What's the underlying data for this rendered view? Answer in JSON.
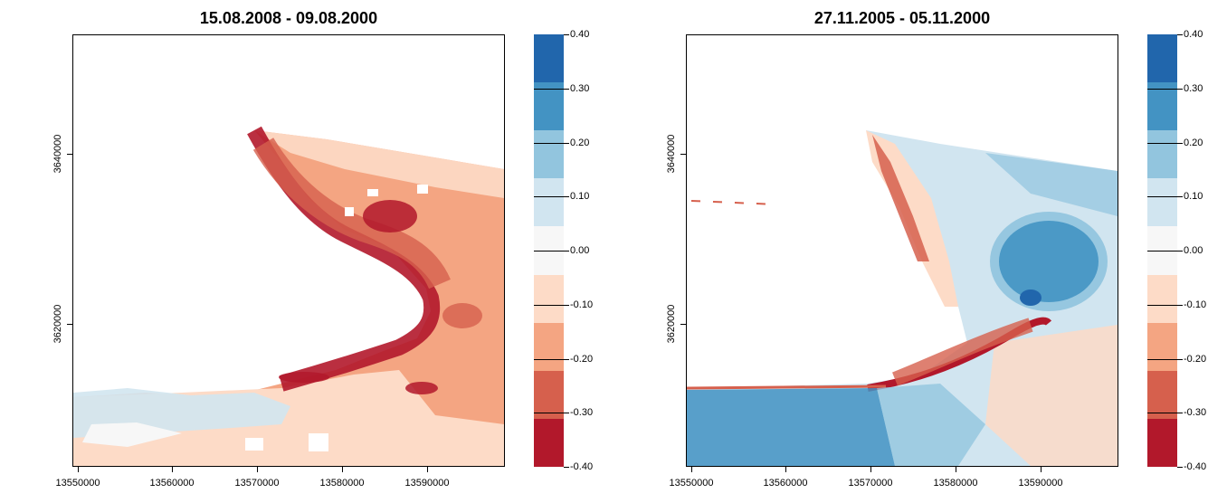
{
  "panels": [
    {
      "title": "15.08.2008 - 09.08.2000",
      "x_ticks": [
        "13550000",
        "13560000",
        "13570000",
        "13580000",
        "13590000"
      ],
      "y_ticks": [
        "3640000",
        "3620000"
      ],
      "map_layer": "difference raster (red = negative change)"
    },
    {
      "title": "27.11.2005 - 05.11.2000",
      "x_ticks": [
        "13550000",
        "13560000",
        "13570000",
        "13580000",
        "13590000"
      ],
      "y_ticks": [
        "3640000",
        "3620000"
      ],
      "map_layer": "difference raster (blue = positive change, red = negative change)"
    }
  ],
  "legend": {
    "labels": [
      "0.40",
      "0.30",
      "0.20",
      "0.10",
      "0.00",
      "-0.10",
      "-0.20",
      "-0.30",
      "-0.40"
    ],
    "colors": [
      "#2166ac",
      "#4393c3",
      "#92c5de",
      "#d1e5f0",
      "#f7f7f7",
      "#fddbc7",
      "#f4a582",
      "#d6604d",
      "#b2182b"
    ]
  },
  "colors": {
    "strong_blue": "#2166ac",
    "mid_blue": "#4393c3",
    "light_blue": "#92c5de",
    "pale_blue": "#d1e5f0",
    "neutral": "#f7f7f7",
    "pale_red": "#fddbc7",
    "light_red": "#f4a582",
    "mid_red": "#d6604d",
    "strong_red": "#b2182b"
  }
}
